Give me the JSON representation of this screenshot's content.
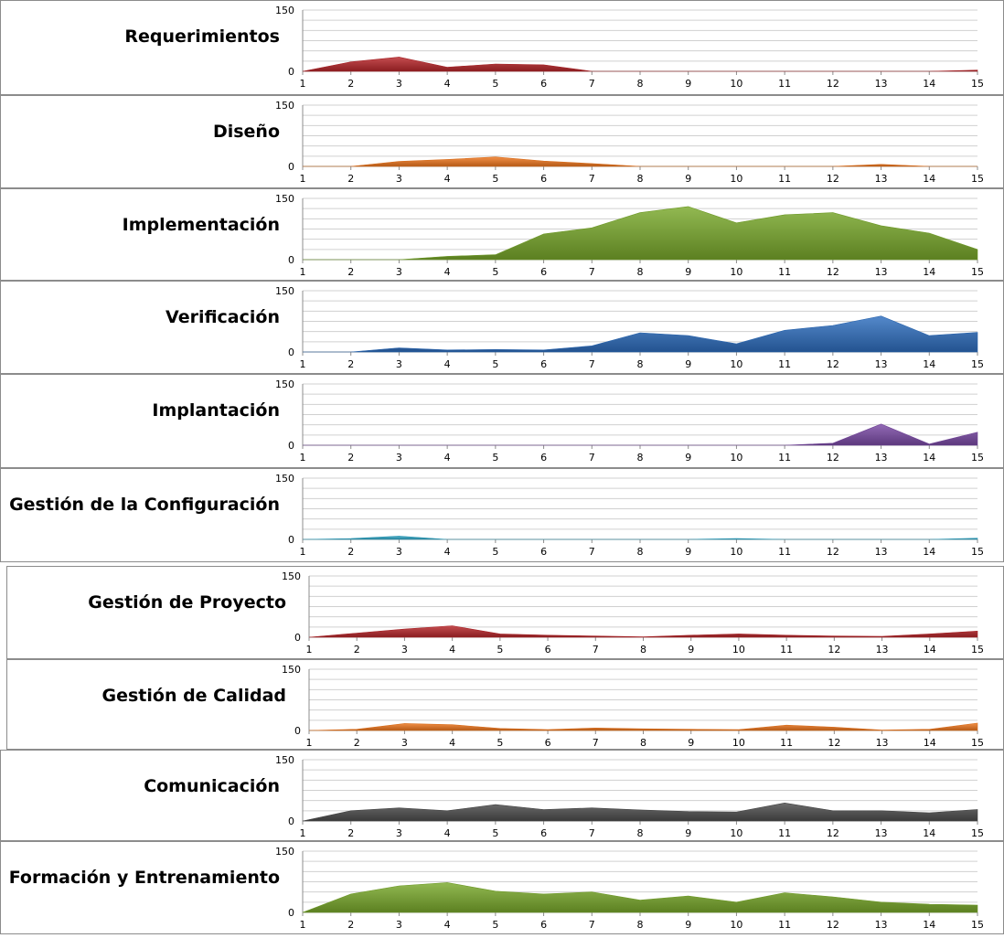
{
  "chart_data": [
    {
      "type": "area",
      "title": "Requerimientos",
      "color": "#b8262a",
      "ylim": [
        0,
        150
      ],
      "yticks": [
        "0",
        "150"
      ],
      "categories": [
        "1",
        "2",
        "3",
        "4",
        "5",
        "6",
        "7",
        "8",
        "9",
        "10",
        "11",
        "12",
        "13",
        "14",
        "15"
      ],
      "values": [
        0,
        23,
        35,
        10,
        18,
        16,
        0,
        0,
        0,
        0,
        0,
        0,
        0,
        0,
        3
      ]
    },
    {
      "type": "area",
      "title": "Diseño",
      "color": "#f0781e",
      "ylim": [
        0,
        150
      ],
      "yticks": [
        "0",
        "150"
      ],
      "categories": [
        "1",
        "2",
        "3",
        "4",
        "5",
        "6",
        "7",
        "8",
        "9",
        "10",
        "11",
        "12",
        "13",
        "14",
        "15"
      ],
      "values": [
        0,
        0,
        12,
        17,
        23,
        13,
        7,
        0,
        0,
        0,
        0,
        0,
        5,
        0,
        0
      ]
    },
    {
      "type": "area",
      "title": "Implementación",
      "color": "#7aaa2c",
      "ylim": [
        0,
        150
      ],
      "yticks": [
        "0",
        "150"
      ],
      "categories": [
        "1",
        "2",
        "3",
        "4",
        "5",
        "6",
        "7",
        "8",
        "9",
        "10",
        "11",
        "12",
        "13",
        "14",
        "15"
      ],
      "values": [
        0,
        0,
        0,
        8,
        12,
        63,
        78,
        115,
        130,
        90,
        110,
        115,
        83,
        65,
        25
      ]
    },
    {
      "type": "area",
      "title": "Verificación",
      "color": "#2e6fc0",
      "ylim": [
        0,
        150
      ],
      "yticks": [
        "0",
        "150"
      ],
      "categories": [
        "1",
        "2",
        "3",
        "4",
        "5",
        "6",
        "7",
        "8",
        "9",
        "10",
        "11",
        "12",
        "13",
        "14",
        "15"
      ],
      "values": [
        0,
        0,
        10,
        5,
        6,
        5,
        15,
        47,
        40,
        20,
        53,
        65,
        88,
        40,
        48
      ]
    },
    {
      "type": "area",
      "title": "Implantación",
      "color": "#7b4aa6",
      "ylim": [
        0,
        150
      ],
      "yticks": [
        "0",
        "150"
      ],
      "categories": [
        "1",
        "2",
        "3",
        "4",
        "5",
        "6",
        "7",
        "8",
        "9",
        "10",
        "11",
        "12",
        "13",
        "14",
        "15"
      ],
      "values": [
        0,
        0,
        0,
        0,
        0,
        0,
        0,
        0,
        0,
        0,
        0,
        5,
        52,
        3,
        32
      ]
    },
    {
      "type": "area",
      "title": "Gestión de la Configuración",
      "color": "#2fa6c6",
      "ylim": [
        0,
        150
      ],
      "yticks": [
        "0",
        "150"
      ],
      "categories": [
        "1",
        "2",
        "3",
        "4",
        "5",
        "6",
        "7",
        "8",
        "9",
        "10",
        "11",
        "12",
        "13",
        "14",
        "15"
      ],
      "values": [
        0,
        2,
        8,
        0,
        0,
        0,
        0,
        0,
        0,
        2,
        0,
        0,
        0,
        0,
        3
      ]
    },
    {
      "type": "area",
      "title": "Gestión de Proyecto",
      "color": "#b8262a",
      "ylim": [
        0,
        150
      ],
      "yticks": [
        "0",
        "150"
      ],
      "categories": [
        "1",
        "2",
        "3",
        "4",
        "5",
        "6",
        "7",
        "8",
        "9",
        "10",
        "11",
        "12",
        "13",
        "14",
        "15"
      ],
      "values": [
        0,
        10,
        20,
        28,
        8,
        5,
        3,
        1,
        5,
        8,
        5,
        3,
        2,
        8,
        15
      ]
    },
    {
      "type": "area",
      "title": "Gestión de Calidad",
      "color": "#f0781e",
      "ylim": [
        0,
        150
      ],
      "yticks": [
        "0",
        "150"
      ],
      "categories": [
        "1",
        "2",
        "3",
        "4",
        "5",
        "6",
        "7",
        "8",
        "9",
        "10",
        "11",
        "12",
        "13",
        "14",
        "15"
      ],
      "values": [
        0,
        3,
        17,
        14,
        5,
        2,
        6,
        4,
        3,
        2,
        13,
        8,
        1,
        3,
        18
      ]
    },
    {
      "type": "area",
      "title": "Comunicación",
      "color": "#4d4d4d",
      "ylim": [
        0,
        150
      ],
      "yticks": [
        "0",
        "150"
      ],
      "categories": [
        "1",
        "2",
        "3",
        "4",
        "5",
        "6",
        "7",
        "8",
        "9",
        "10",
        "11",
        "12",
        "13",
        "14",
        "15"
      ],
      "values": [
        0,
        25,
        32,
        25,
        40,
        28,
        32,
        27,
        23,
        22,
        44,
        25,
        25,
        20,
        28
      ]
    },
    {
      "type": "area",
      "title": "Formación y Entrenamiento",
      "color": "#7aaa2c",
      "ylim": [
        0,
        150
      ],
      "yticks": [
        "0",
        "150"
      ],
      "categories": [
        "1",
        "2",
        "3",
        "4",
        "5",
        "6",
        "7",
        "8",
        "9",
        "10",
        "11",
        "12",
        "13",
        "14",
        "15"
      ],
      "values": [
        0,
        45,
        65,
        73,
        52,
        45,
        50,
        30,
        40,
        25,
        48,
        38,
        25,
        20,
        18
      ]
    }
  ]
}
